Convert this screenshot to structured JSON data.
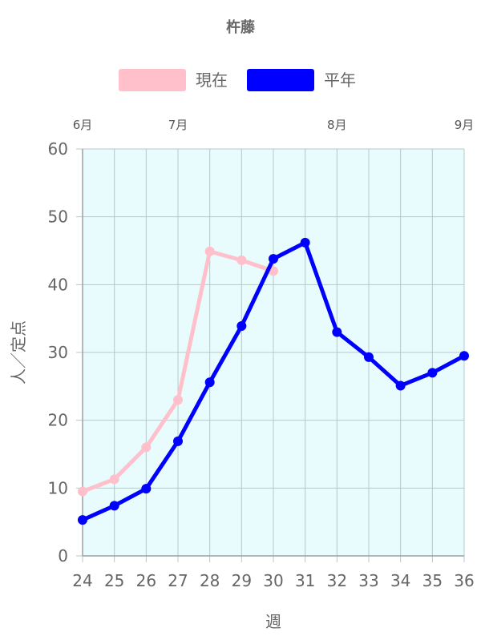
{
  "chart_data": {
    "type": "line",
    "title": "杵藤",
    "xlabel": "週",
    "ylabel": "人／定点",
    "categories": [
      "24",
      "25",
      "26",
      "27",
      "28",
      "29",
      "30",
      "31",
      "32",
      "33",
      "34",
      "35",
      "36"
    ],
    "ylim": [
      0,
      60
    ],
    "yticks": [
      0,
      10,
      20,
      30,
      40,
      50,
      60
    ],
    "grid": true,
    "legend_position": "top",
    "plot_background": "#e8fcfd",
    "top_axis": {
      "labels": [
        {
          "text": "6月",
          "at": "24"
        },
        {
          "text": "7月",
          "at": "27"
        },
        {
          "text": "8月",
          "at": "32"
        },
        {
          "text": "9月",
          "at": "36"
        }
      ]
    },
    "series": [
      {
        "name": "現在",
        "color": "#ffc0cb",
        "values": [
          9.5,
          11.3,
          16.0,
          23.0,
          44.9,
          43.6,
          42.0,
          null,
          null,
          null,
          null,
          null,
          null
        ]
      },
      {
        "name": "平年",
        "color": "#0000ff",
        "values": [
          5.3,
          7.4,
          9.9,
          16.9,
          25.6,
          33.9,
          43.8,
          46.2,
          33.0,
          29.3,
          25.1,
          27.0,
          29.5
        ]
      }
    ]
  }
}
